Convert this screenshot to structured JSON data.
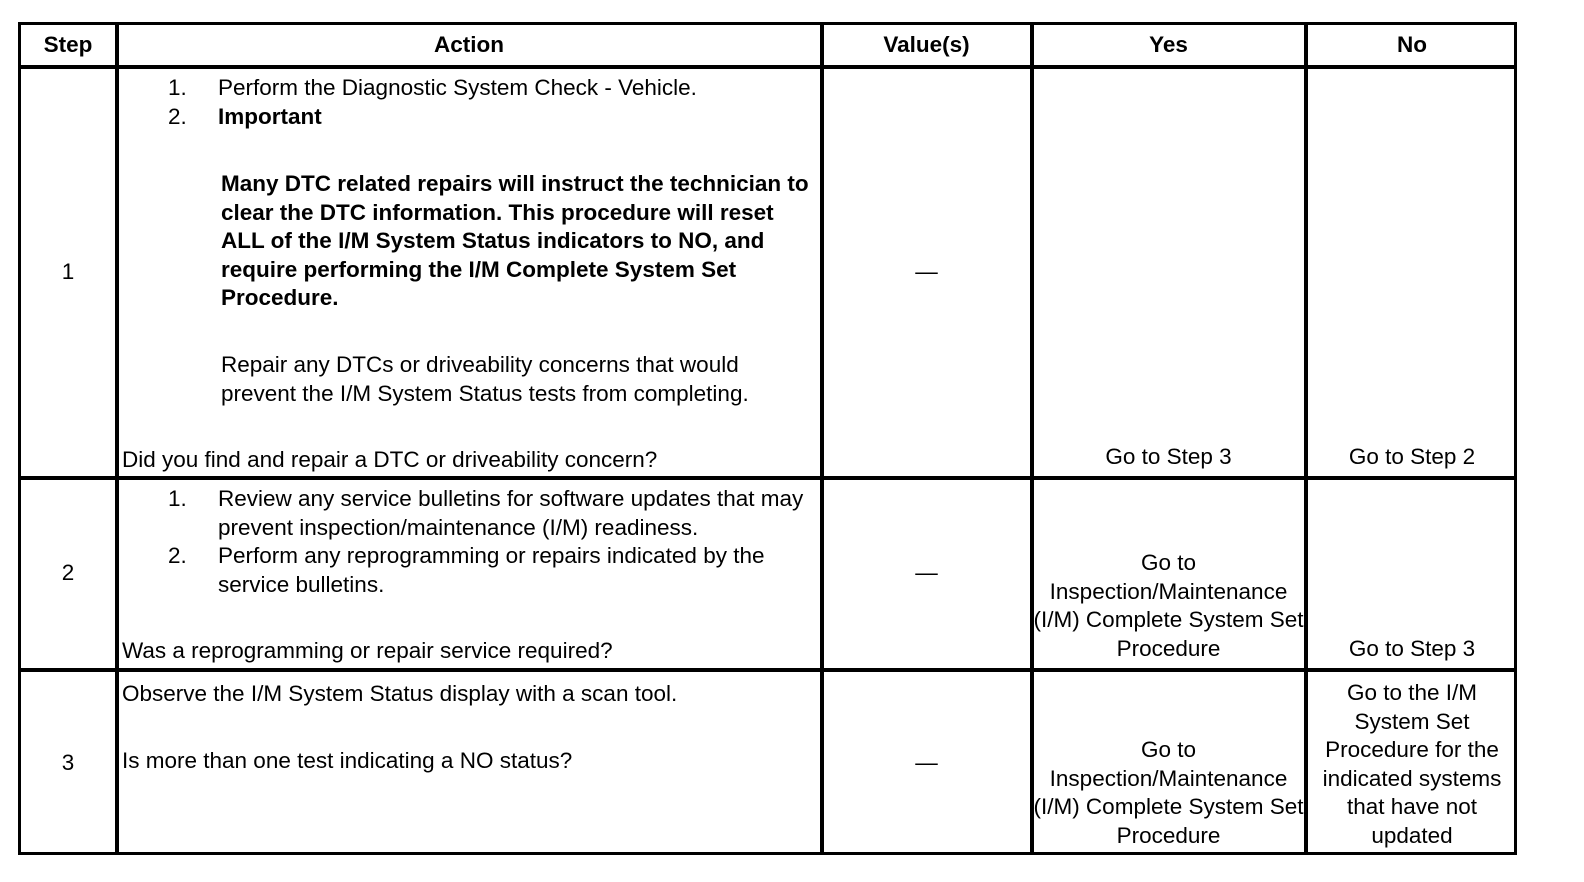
{
  "headers": {
    "step": "Step",
    "action": "Action",
    "values": "Value(s)",
    "yes": "Yes",
    "no": "No"
  },
  "rows": [
    {
      "step": "1",
      "list": [
        {
          "num": "1.",
          "text": "Perform the Diagnostic System Check - Vehicle."
        },
        {
          "num": "2.",
          "text": "Important"
        }
      ],
      "important_note": "Many DTC related repairs will instruct the technician to clear the DTC information. This procedure will reset ALL of the I/M System Status indicators to NO, and require performing the I/M Complete System Set Procedure.",
      "note": "Repair any DTCs or driveability concerns that would prevent the I/M System Status tests from completing.",
      "question": "Did you find and repair a DTC or driveability concern?",
      "value": "—",
      "yes": "Go to Step 3",
      "no": "Go to Step 2"
    },
    {
      "step": "2",
      "list": [
        {
          "num": "1.",
          "text": "Review any service bulletins for software updates that may prevent inspection/maintenance (I/M) readiness."
        },
        {
          "num": "2.",
          "text": "Perform any reprogramming or repairs indicated by the service bulletins."
        }
      ],
      "question": "Was a reprogramming or repair service required?",
      "value": "—",
      "yes": "Go to Inspection/Maintenance (I/M) Complete System Set Procedure",
      "no": "Go to Step 3"
    },
    {
      "step": "3",
      "instruction": "Observe the I/M System Status display with a scan tool.",
      "question": "Is more than one test indicating a NO status?",
      "value": "—",
      "yes": "Go to Inspection/Maintenance (I/M) Complete System Set Procedure",
      "no": "Go to the I/M System Set Procedure for the indicated systems that have not updated"
    }
  ]
}
